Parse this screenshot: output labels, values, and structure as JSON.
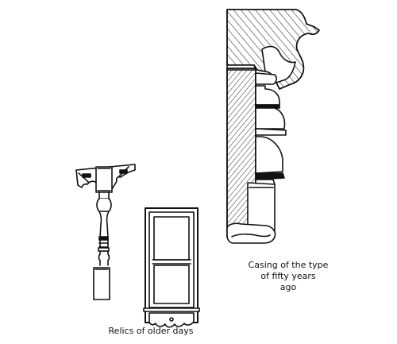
{
  "captions": {
    "casing": {
      "line1": "Casing of the type",
      "line2": "of fifty years",
      "line3": "ago"
    },
    "relics": "Relics of older days"
  },
  "drawings": [
    {
      "icon": "bracket-and-turned-post-icon"
    },
    {
      "icon": "double-hung-window-icon"
    },
    {
      "icon": "molded-casing-profile-icon"
    }
  ],
  "colors": {
    "ink": "#111111",
    "paper": "#ffffff"
  }
}
